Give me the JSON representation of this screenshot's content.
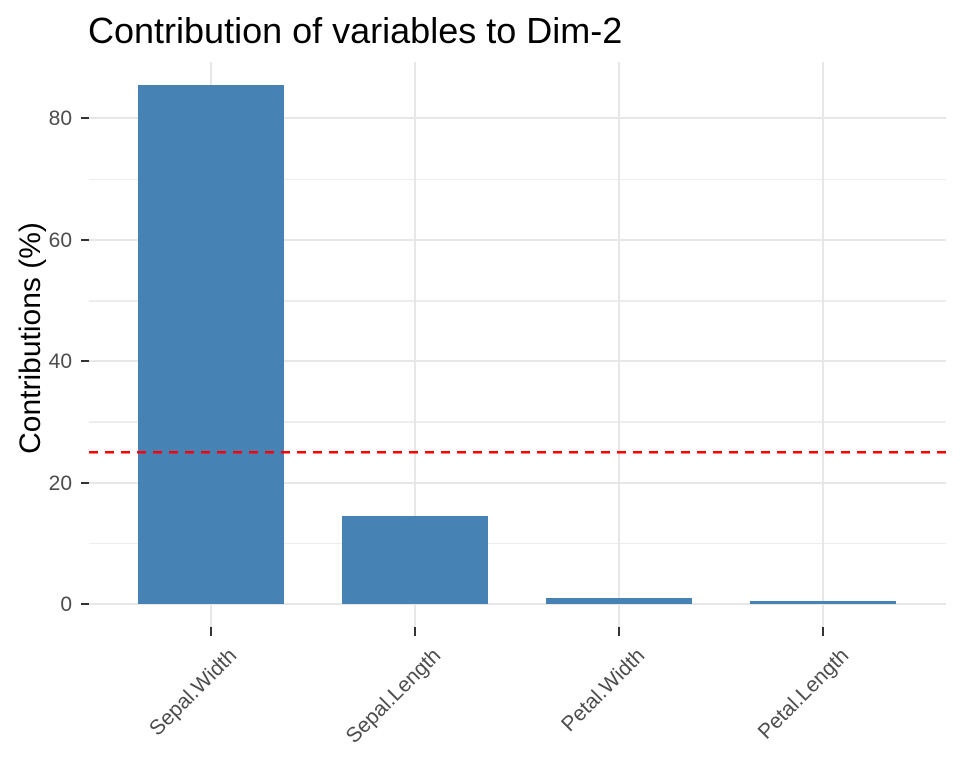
{
  "chart_data": {
    "type": "bar",
    "title": "Contribution of variables to Dim-2",
    "xlabel": "",
    "ylabel": "Contributions (%)",
    "categories": [
      "Sepal.Width",
      "Sepal.Length",
      "Petal.Width",
      "Petal.Length"
    ],
    "values": [
      85.2,
      14.3,
      0.7,
      0.25
    ],
    "ylim": [
      0,
      89
    ],
    "y_major_ticks": [
      0,
      20,
      40,
      60,
      80
    ],
    "y_minor_gridlines": [
      10,
      30,
      50,
      70
    ],
    "grid": true,
    "legend": "none",
    "bar_color": "#4682B4",
    "reference_line": {
      "value": 25,
      "color": "#FF0000",
      "style": "dashed"
    },
    "grid_major_color": "#E7E7E7",
    "grid_minor_color": "#EDEDED",
    "axis_text_color": "#4D4D4D",
    "tick_mark_color": "#333333",
    "title_color": "#000000"
  }
}
